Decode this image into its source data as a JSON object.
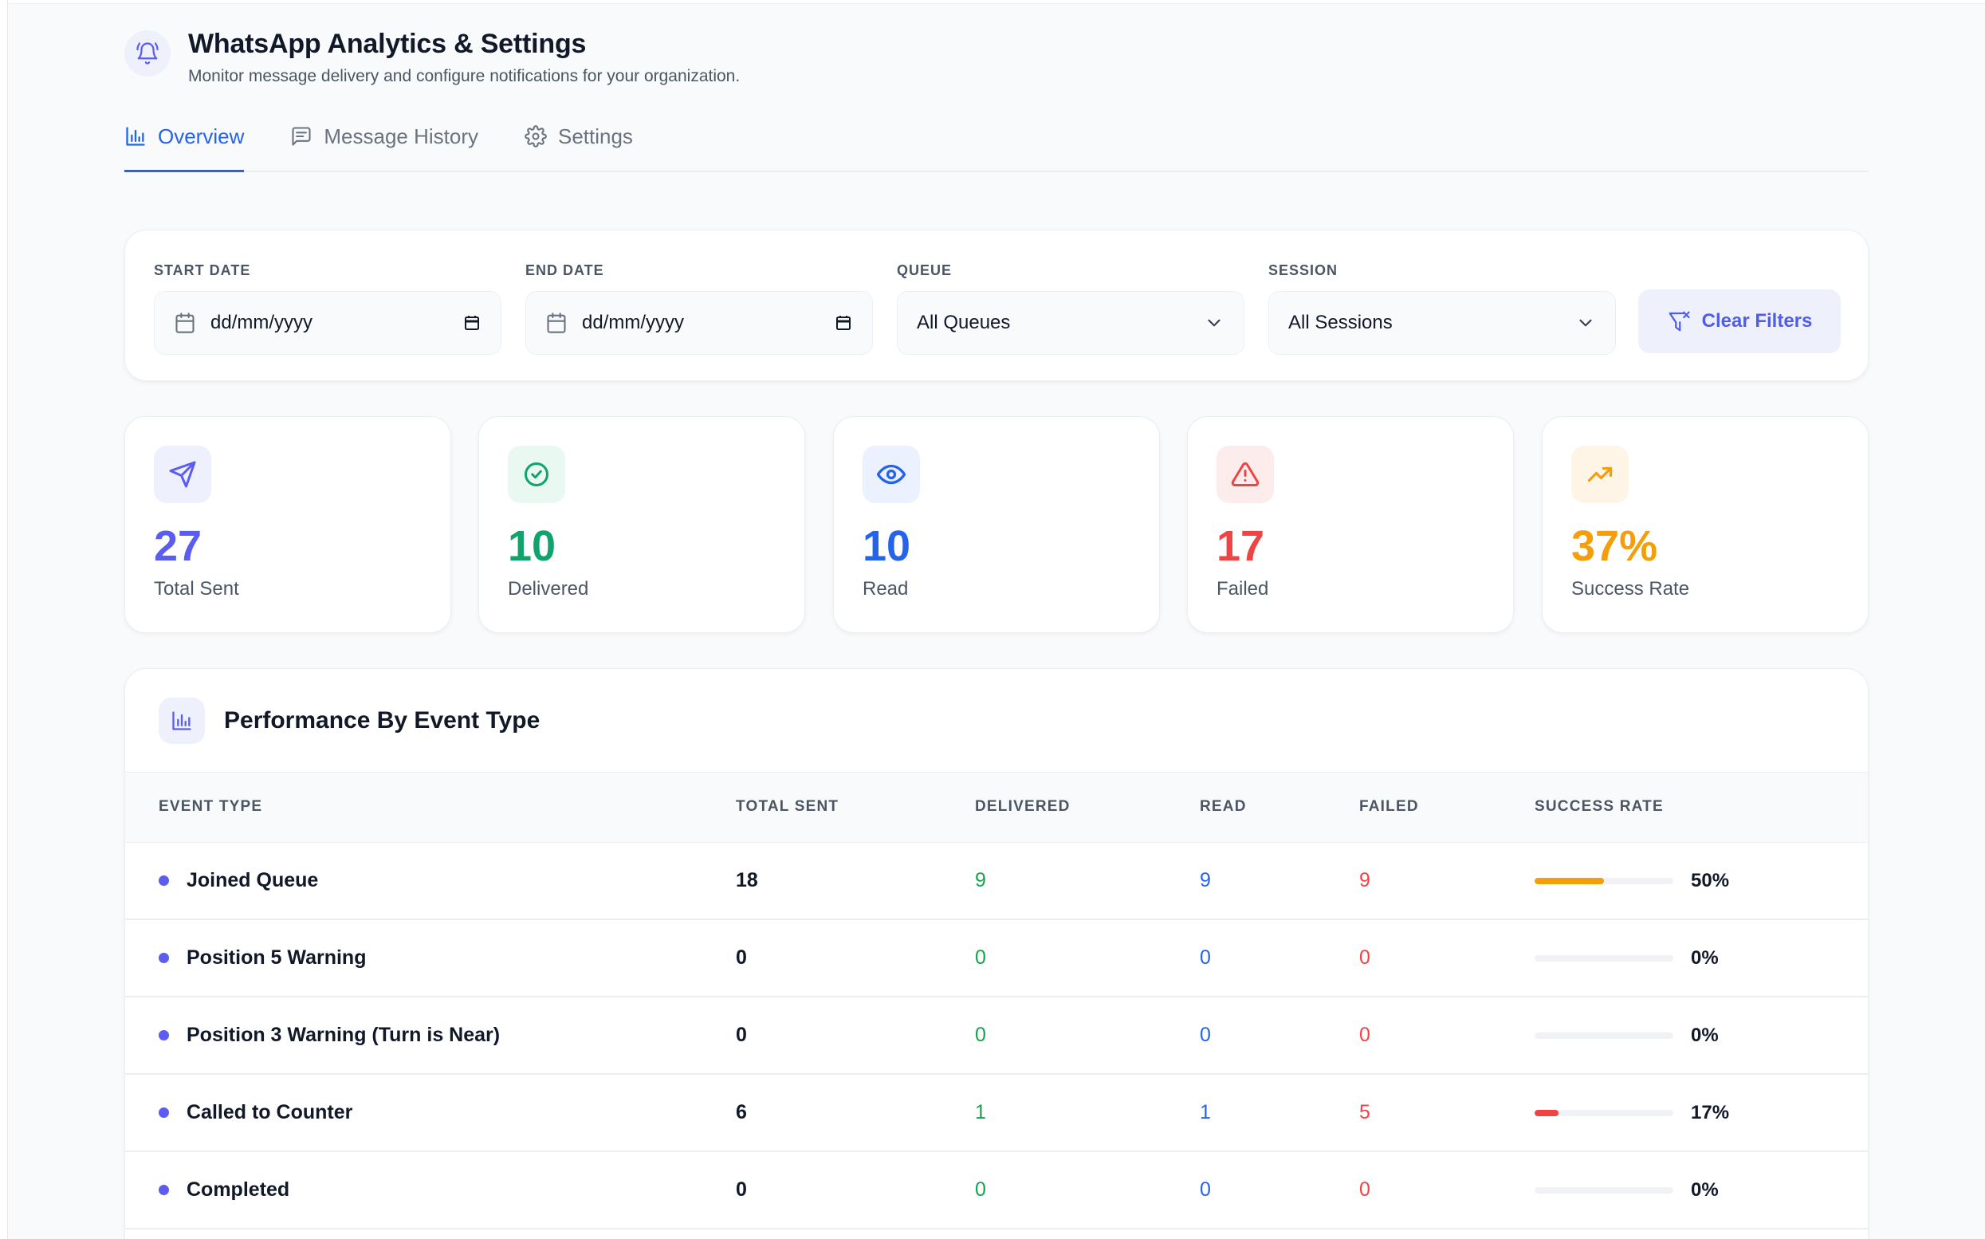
{
  "header": {
    "title": "WhatsApp Analytics & Settings",
    "subtitle": "Monitor message delivery and configure notifications for your organization."
  },
  "tabs": [
    {
      "label": "Overview",
      "active": true,
      "icon": "bar-chart-icon"
    },
    {
      "label": "Message History",
      "active": false,
      "icon": "message-icon"
    },
    {
      "label": "Settings",
      "active": false,
      "icon": "gear-icon"
    }
  ],
  "filters": {
    "start_date": {
      "label": "START DATE",
      "value": "dd/mm/yyyy"
    },
    "end_date": {
      "label": "END DATE",
      "value": "dd/mm/yyyy"
    },
    "queue": {
      "label": "QUEUE",
      "value": "All Queues"
    },
    "session": {
      "label": "SESSION",
      "value": "All Sessions"
    },
    "clear_label": "Clear Filters"
  },
  "stats": [
    {
      "value": "27",
      "label": "Total Sent",
      "color": "#5b5cf0",
      "bg": "#eef0fd",
      "icon": "send-icon"
    },
    {
      "value": "10",
      "label": "Delivered",
      "color": "#10a36b",
      "bg": "#e9f8f1",
      "icon": "check-circle-icon"
    },
    {
      "value": "10",
      "label": "Read",
      "color": "#2563eb",
      "bg": "#ebf1fe",
      "icon": "eye-icon"
    },
    {
      "value": "17",
      "label": "Failed",
      "color": "#ef4444",
      "bg": "#fdecec",
      "icon": "alert-triangle-icon"
    },
    {
      "value": "37%",
      "label": "Success Rate",
      "color": "#f59e0b",
      "bg": "#fef5e7",
      "icon": "trending-up-icon"
    }
  ],
  "table": {
    "title": "Performance By Event Type",
    "columns": [
      "EVENT TYPE",
      "TOTAL SENT",
      "DELIVERED",
      "READ",
      "FAILED",
      "SUCCESS RATE"
    ],
    "rows": [
      {
        "event": "Joined Queue",
        "total": "18",
        "delivered": "9",
        "read": "9",
        "failed": "9",
        "rate": "50%",
        "rate_value": 0.5,
        "bar_color": "#f59e0b"
      },
      {
        "event": "Position 5 Warning",
        "total": "0",
        "delivered": "0",
        "read": "0",
        "failed": "0",
        "rate": "0%",
        "rate_value": 0,
        "bar_color": "#ef4444"
      },
      {
        "event": "Position 3 Warning (Turn is Near)",
        "total": "0",
        "delivered": "0",
        "read": "0",
        "failed": "0",
        "rate": "0%",
        "rate_value": 0,
        "bar_color": "#ef4444"
      },
      {
        "event": "Called to Counter",
        "total": "6",
        "delivered": "1",
        "read": "1",
        "failed": "5",
        "rate": "17%",
        "rate_value": 0.17,
        "bar_color": "#ef4444"
      },
      {
        "event": "Completed",
        "total": "0",
        "delivered": "0",
        "read": "0",
        "failed": "0",
        "rate": "0%",
        "rate_value": 0,
        "bar_color": "#ef4444"
      }
    ]
  }
}
